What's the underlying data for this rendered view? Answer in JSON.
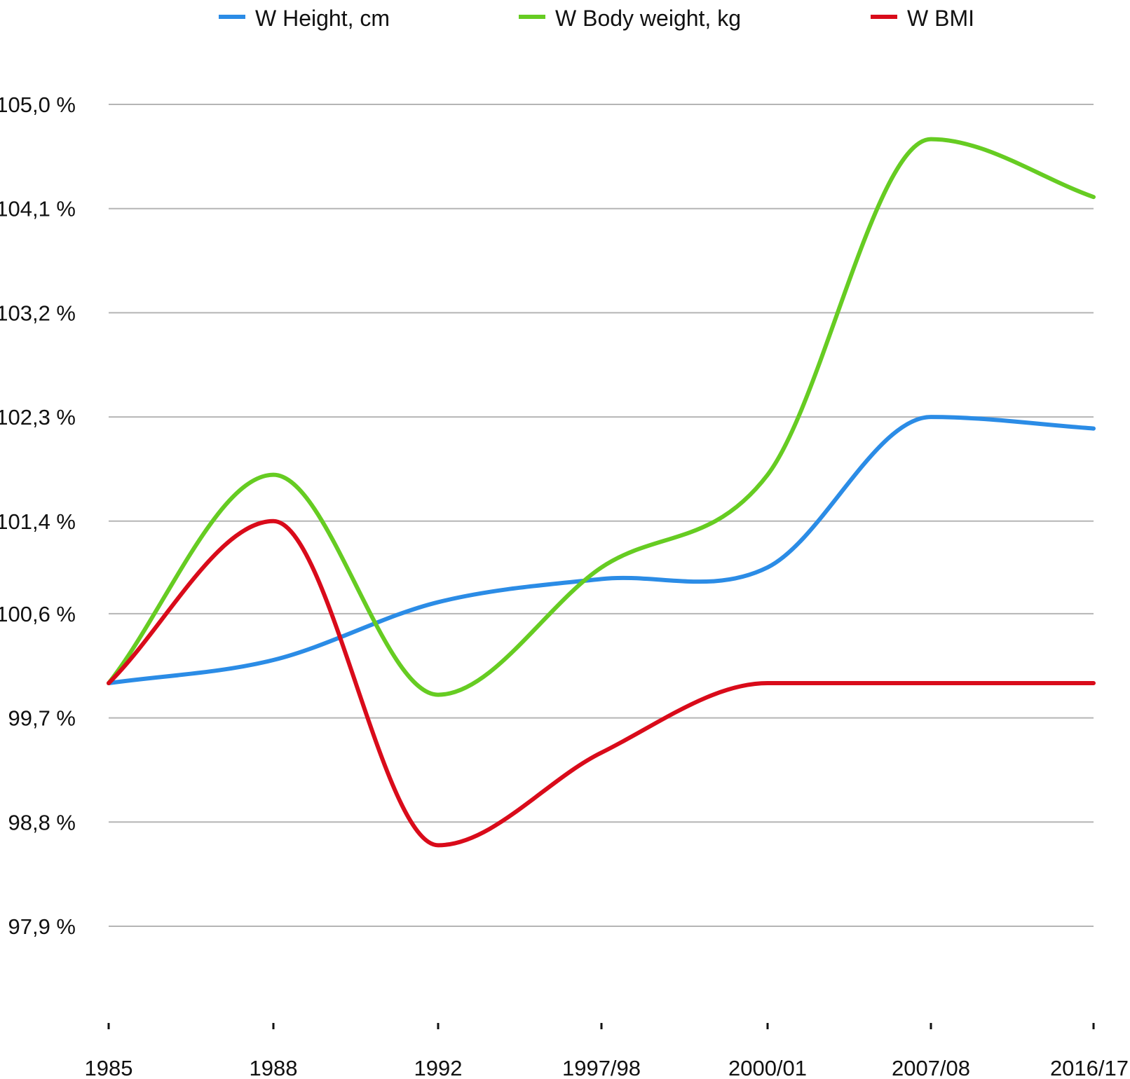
{
  "chart_data": {
    "type": "line",
    "title": "",
    "xlabel": "",
    "ylabel": "",
    "categories": [
      "1985",
      "1988",
      "1992",
      "1997/98",
      "2000/01",
      "2007/08",
      "2016/17"
    ],
    "ylim": [
      97.9,
      105.0
    ],
    "yticks": [
      97.9,
      98.8,
      99.7,
      100.6,
      101.4,
      102.3,
      103.2,
      104.1,
      105.0
    ],
    "ytick_labels": [
      "97,9 %",
      "98,8 %",
      "99,7 %",
      "100,6 %",
      "101,4 %",
      "102,3 %",
      "103,2 %",
      "104,1 %",
      "105,0 %"
    ],
    "grid": true,
    "legend_position": "top",
    "series": [
      {
        "name": "W Height, cm",
        "color": "#2b8ce6",
        "values": [
          100.0,
          100.2,
          100.7,
          100.9,
          101.0,
          102.3,
          102.2
        ]
      },
      {
        "name": "W Body weight, kg",
        "color": "#66cc22",
        "values": [
          100.0,
          101.8,
          99.9,
          101.0,
          101.8,
          104.7,
          104.2
        ]
      },
      {
        "name": "W BMI",
        "color": "#d90b1a",
        "values": [
          100.0,
          101.4,
          98.6,
          99.4,
          100.0,
          100.0,
          100.0
        ]
      }
    ]
  }
}
